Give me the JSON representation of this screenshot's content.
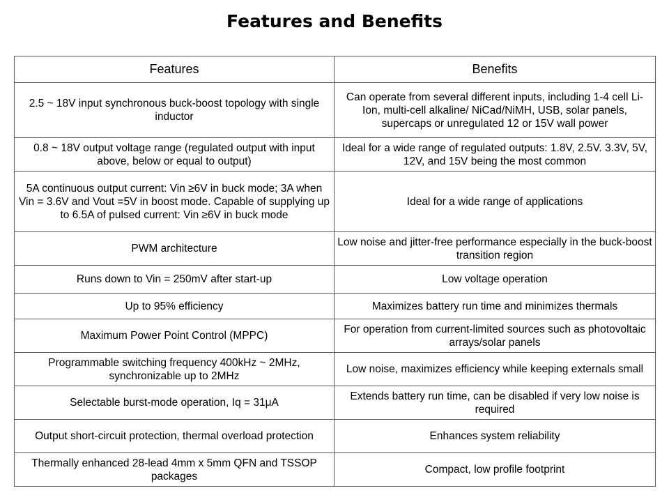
{
  "title": "Features and Benefits",
  "table": {
    "headers": [
      "Features",
      "Benefits"
    ],
    "rows": [
      [
        "2.5 ~ 18V input synchronous buck-boost topology with single inductor",
        "Can operate from several different inputs, including 1-4 cell Li-Ion, multi-cell alkaline/ NiCad/NiMH, USB, solar panels, supercaps or unregulated 12 or 15V wall power"
      ],
      [
        "0.8 ~ 18V output voltage range (regulated output with input above, below or equal to output)",
        "Ideal for a wide range of regulated outputs: 1.8V, 2.5V. 3.3V, 5V, 12V, and 15V being the most common"
      ],
      [
        "5A continuous output current:  Vin ≥6V in buck mode; 3A when Vin = 3.6V and Vout =5V in boost mode. Capable of supplying up to 6.5A of pulsed current:  Vin ≥6V in buck mode",
        "Ideal for a wide range of applications"
      ],
      [
        "PWM architecture",
        "Low noise and jitter-free performance especially in the buck-boost transition region"
      ],
      [
        "Runs down to Vin = 250mV after start-up",
        "Low voltage operation"
      ],
      [
        "Up to 95% efficiency",
        "Maximizes battery run time and minimizes thermals"
      ],
      [
        "Maximum Power Point Control (MPPC)",
        "For operation from current-limited sources such as photovoltaic arrays/solar panels"
      ],
      [
        "Programmable switching frequency 400kHz ~ 2MHz, synchronizable up to 2MHz",
        "Low noise, maximizes efficiency while keeping externals small"
      ],
      [
        "Selectable burst-mode operation, Iq = 31μA",
        "Extends battery run time, can be disabled if very low noise is required"
      ],
      [
        "Output short-circuit protection, thermal overload protection",
        "Enhances system reliability"
      ],
      [
        "Thermally enhanced 28-lead 4mm x 5mm QFN and TSSOP packages",
        "Compact, low profile footprint"
      ]
    ]
  }
}
